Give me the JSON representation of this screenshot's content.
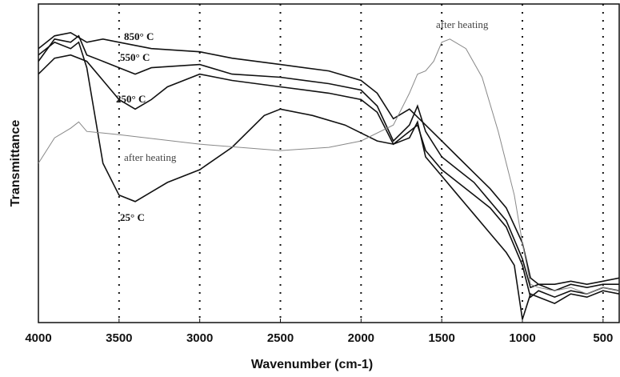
{
  "chart_data": {
    "type": "line",
    "x_label": "Wavenumber (cm-1)",
    "y_label": "Transmittance",
    "xlim": [
      4000,
      400
    ],
    "ylim": [
      0,
      100
    ],
    "xticks": [
      4000,
      3500,
      3000,
      2500,
      2000,
      1500,
      1000,
      500
    ],
    "grid": true,
    "series": [
      {
        "name": "850° C",
        "color": "#111111",
        "x": [
          4000,
          3900,
          3800,
          3700,
          3600,
          3500,
          3300,
          3000,
          2800,
          2500,
          2200,
          2000,
          1900,
          1800,
          1700,
          1600,
          1500,
          1400,
          1300,
          1200,
          1100,
          1000,
          950,
          900,
          800,
          700,
          600,
          500,
          400
        ],
        "values": [
          86,
          90,
          91,
          88,
          89,
          88,
          86,
          85,
          83,
          81,
          79,
          76,
          72,
          64,
          67,
          62,
          57,
          52,
          47,
          42,
          36,
          25,
          14,
          12,
          12,
          13,
          12,
          13,
          14
        ]
      },
      {
        "name": "550° C",
        "color": "#111111",
        "x": [
          4000,
          3900,
          3800,
          3750,
          3700,
          3600,
          3500,
          3400,
          3300,
          3000,
          2800,
          2500,
          2200,
          2000,
          1900,
          1800,
          1700,
          1650,
          1600,
          1500,
          1400,
          1300,
          1200,
          1100,
          1000,
          950,
          900,
          800,
          700,
          600,
          500,
          400
        ],
        "values": [
          82,
          89,
          88,
          90,
          84,
          82,
          80,
          78,
          80,
          81,
          78,
          77,
          75,
          73,
          68,
          57,
          62,
          68,
          60,
          52,
          48,
          44,
          38,
          32,
          20,
          11,
          12,
          10,
          12,
          11,
          12,
          12
        ]
      },
      {
        "name": "250° C",
        "color": "#111111",
        "x": [
          4000,
          3900,
          3800,
          3700,
          3600,
          3500,
          3400,
          3300,
          3200,
          3000,
          2800,
          2500,
          2200,
          2000,
          1900,
          1800,
          1700,
          1650,
          1600,
          1500,
          1400,
          1300,
          1200,
          1100,
          1000,
          950,
          900,
          800,
          700,
          600,
          500,
          400
        ],
        "values": [
          78,
          83,
          84,
          82,
          76,
          70,
          67,
          70,
          74,
          78,
          76,
          74,
          72,
          70,
          66,
          56,
          60,
          62,
          54,
          48,
          44,
          40,
          36,
          30,
          18,
          8,
          10,
          8,
          10,
          9,
          11,
          10
        ]
      },
      {
        "name": "25° C",
        "color": "#111111",
        "x": [
          4000,
          3900,
          3800,
          3750,
          3700,
          3650,
          3600,
          3500,
          3400,
          3300,
          3200,
          3000,
          2800,
          2600,
          2500,
          2300,
          2100,
          1900,
          1800,
          1700,
          1650,
          1600,
          1500,
          1400,
          1300,
          1200,
          1100,
          1050,
          1000,
          950,
          900,
          800,
          700,
          600,
          500,
          400
        ],
        "values": [
          84,
          88,
          86,
          88,
          80,
          65,
          50,
          40,
          38,
          41,
          44,
          48,
          55,
          65,
          67,
          65,
          62,
          57,
          56,
          58,
          63,
          52,
          46,
          40,
          34,
          28,
          22,
          18,
          1,
          9,
          8,
          6,
          9,
          8,
          10,
          9
        ]
      },
      {
        "name": "after heating",
        "color": "#888888",
        "x": [
          4000,
          3900,
          3800,
          3750,
          3700,
          3500,
          3000,
          2500,
          2200,
          2000,
          1800,
          1700,
          1650,
          1600,
          1550,
          1500,
          1450,
          1350,
          1250,
          1150,
          1050,
          1000,
          950,
          900,
          800,
          700,
          600,
          500,
          400
        ],
        "values": [
          50,
          58,
          61,
          63,
          60,
          59,
          56,
          54,
          55,
          57,
          62,
          72,
          78,
          79,
          82,
          88,
          89,
          86,
          77,
          60,
          40,
          25,
          12,
          11,
          10,
          11,
          9,
          11,
          10
        ]
      }
    ],
    "annotations": [
      "after heating"
    ]
  }
}
